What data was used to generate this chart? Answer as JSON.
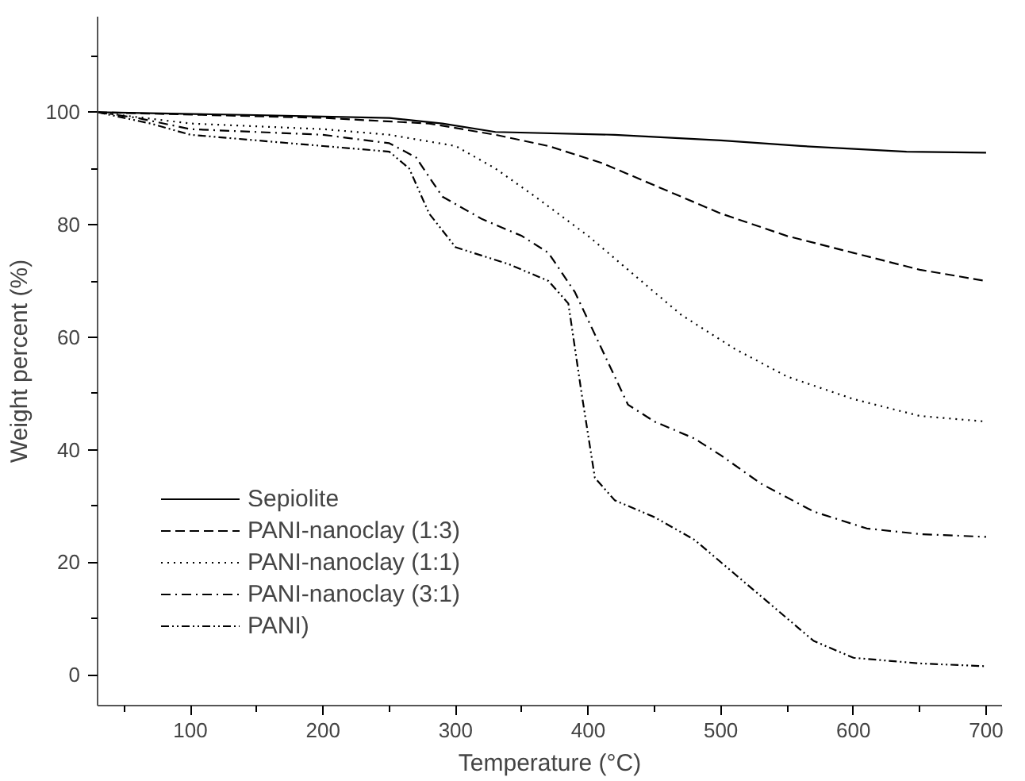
{
  "chart_data": {
    "type": "line",
    "xlabel": "Temperature (°C)",
    "ylabel": "Weight percent (%)",
    "xlim": [
      30,
      712
    ],
    "ylim": [
      -5.5,
      117
    ],
    "xticks": [
      {
        "value": 50,
        "label": null
      },
      100,
      {
        "value": 150,
        "label": null
      },
      200,
      {
        "value": 250,
        "label": null
      },
      300,
      {
        "value": 350,
        "label": null
      },
      400,
      {
        "value": 450,
        "label": null
      },
      500,
      {
        "value": 550,
        "label": null
      },
      600,
      {
        "value": 650,
        "label": null
      },
      700
    ],
    "yticks": [
      0,
      {
        "value": 10,
        "label": null
      },
      20,
      {
        "value": 30,
        "label": null
      },
      40,
      {
        "value": 50,
        "label": null
      },
      60,
      {
        "value": 70,
        "label": null
      },
      80,
      {
        "value": 90,
        "label": null
      },
      100,
      {
        "value": 110,
        "label": null
      }
    ],
    "grid": false,
    "legend": "bottom left",
    "marker": "none",
    "series": [
      {
        "name": "Sepiolite",
        "color": "#000000",
        "line_style": "solid",
        "x": [
          30,
          150,
          250,
          290,
          330,
          420,
          500,
          560,
          640,
          700
        ],
        "values": [
          100,
          99.5,
          99,
          98,
          96.5,
          96,
          95,
          94,
          93,
          92.8
        ]
      },
      {
        "name": "PANI-nanoclay (1:3)",
        "color": "#000000",
        "line_style": "dashed",
        "x": [
          30,
          200,
          280,
          330,
          370,
          410,
          450,
          500,
          550,
          600,
          650,
          700
        ],
        "values": [
          100,
          99,
          98,
          96,
          94,
          91,
          87,
          82,
          78,
          75,
          72,
          70
        ]
      },
      {
        "name": "PANI-nanoclay (1:1)",
        "color": "#000000",
        "line_style": "dotted",
        "x": [
          30,
          100,
          200,
          250,
          300,
          330,
          360,
          400,
          430,
          470,
          510,
          550,
          600,
          650,
          700
        ],
        "values": [
          100,
          98,
          97,
          96,
          94,
          90,
          85,
          78,
          72,
          64,
          58,
          53,
          49,
          46,
          45
        ]
      },
      {
        "name": "PANI-nanoclay (3:1)",
        "color": "#000000",
        "line_style": "dashdot",
        "x": [
          30,
          60,
          100,
          200,
          250,
          270,
          290,
          320,
          350,
          370,
          390,
          410,
          430,
          450,
          480,
          500,
          530,
          570,
          610,
          650,
          700
        ],
        "values": [
          100,
          99,
          97,
          96,
          94.5,
          92,
          85,
          81,
          78,
          75,
          68,
          58,
          48,
          45,
          42,
          39,
          34,
          29,
          26,
          25,
          24.5
        ]
      },
      {
        "name": "PANI)",
        "color": "#000000",
        "line_style": "dashdotdot",
        "x": [
          30,
          70,
          100,
          200,
          250,
          265,
          280,
          300,
          340,
          370,
          385,
          395,
          405,
          420,
          450,
          480,
          510,
          540,
          570,
          600,
          650,
          700
        ],
        "values": [
          100,
          98,
          96,
          94,
          93,
          90,
          82,
          76,
          73,
          70,
          66,
          50,
          35,
          31,
          28,
          24,
          18,
          12,
          6,
          3,
          2,
          1.5
        ]
      }
    ]
  }
}
